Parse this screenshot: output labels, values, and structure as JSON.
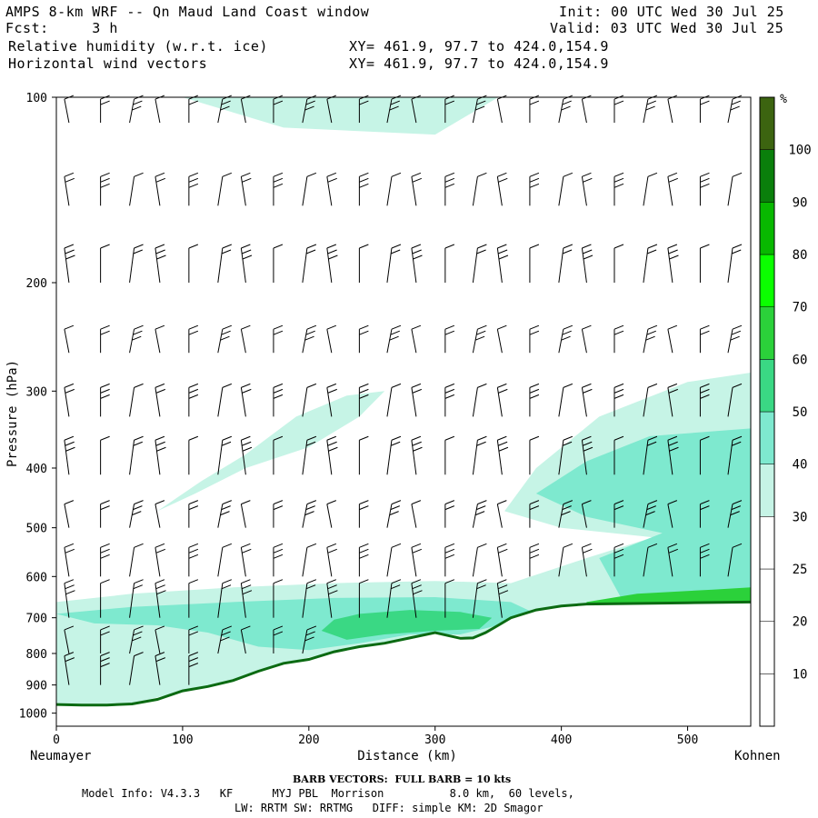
{
  "header": {
    "title": "AMPS 8-km WRF -- Qn Maud Land Coast window",
    "fcst": "Fcst:     3 h",
    "init": "Init: 00 UTC Wed 30 Jul 25",
    "valid": "Valid: 03 UTC Wed 30 Jul 25",
    "field1": "Relative humidity (w.r.t. ice)",
    "field2": "Horizontal wind vectors",
    "xy1": "XY= 461.9, 97.7 to 424.0,154.9",
    "xy2": "XY= 461.9, 97.7 to 424.0,154.9"
  },
  "axis_labels": {
    "left_end": "Neumayer",
    "right_end": "Kohnen"
  },
  "footer": {
    "barb_note": "BARB VECTORS:  FULL BARB = 10 kts",
    "model_line1": "Model Info: V4.3.3   KF      MYJ PBL  Morrison          8.0 km,  60 levels,",
    "model_line2": "LW: RRTM SW: RRTMG   DIFF: simple KM: 2D Smagor"
  },
  "colors": {
    "terrain_line": "#0b6a12",
    "rh_30_40": "#c6f4e6",
    "rh_40_50": "#7ee9cf",
    "rh_50_60": "#3ad884",
    "rh_60_70": "#2bd13a"
  },
  "chart_data": {
    "type": "heatmap",
    "title": "Relative humidity (w.r.t. ice)",
    "xlabel": "Distance (km)",
    "ylabel": "Pressure (hPa)",
    "xlim": [
      0,
      550
    ],
    "ylim": [
      1050,
      100
    ],
    "y_scale": "log",
    "xticks": [
      0,
      100,
      200,
      300,
      400,
      500
    ],
    "yticks": [
      100,
      200,
      300,
      400,
      500,
      600,
      700,
      800,
      900,
      1000
    ],
    "terrain_surface": {
      "x": [
        0,
        20,
        40,
        60,
        80,
        100,
        120,
        140,
        160,
        180,
        200,
        220,
        240,
        260,
        280,
        300,
        310,
        320,
        330,
        340,
        350,
        360,
        380,
        400,
        420,
        450,
        500,
        550
      ],
      "p": [
        968,
        970,
        970,
        966,
        950,
        920,
        905,
        885,
        855,
        830,
        818,
        795,
        780,
        770,
        755,
        740,
        748,
        756,
        755,
        740,
        720,
        700,
        680,
        670,
        665,
        664,
        662,
        660
      ]
    },
    "colorbar": {
      "unit": "%",
      "bounds": [
        0,
        10,
        20,
        25,
        30,
        40,
        50,
        60,
        70,
        80,
        90,
        100,
        110
      ],
      "labels": [
        10,
        20,
        25,
        30,
        40,
        50,
        60,
        70,
        80,
        90,
        100
      ],
      "colors": [
        "#ffffff",
        "#ffffff",
        "#ffffff",
        "#ffffff",
        "#c6f4e6",
        "#7ee9cf",
        "#3ad884",
        "#2bd13a",
        "#0bff00",
        "#08b800",
        "#0a7f0b",
        "#3c6410"
      ]
    },
    "wind_barbs": {
      "x_columns": [
        10,
        35,
        58,
        82,
        105,
        128,
        150,
        172,
        195,
        218,
        240,
        262,
        285,
        308,
        330,
        353,
        375,
        398,
        420,
        442,
        465,
        488,
        510,
        532
      ],
      "pressure_levels": [
        110,
        150,
        200,
        260,
        330,
        410,
        500,
        600,
        700,
        800,
        900
      ],
      "full_barb_kts": 10
    }
  }
}
